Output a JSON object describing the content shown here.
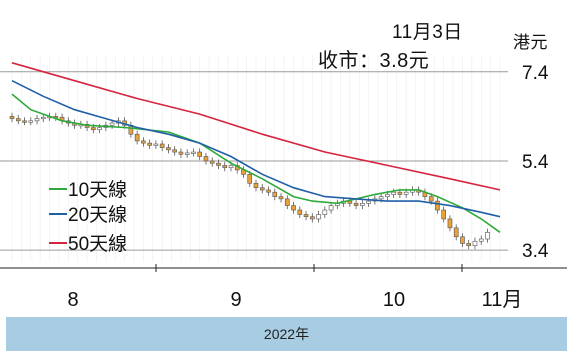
{
  "chart_data": {
    "type": "line",
    "annotation": {
      "date": "11月3日",
      "close": "收市：3.8元"
    },
    "y_unit": "港元",
    "ylim": [
      3.0,
      8.0
    ],
    "y_ticks": [
      3.4,
      5.4,
      7.4
    ],
    "y_tick_labels": [
      "3.4",
      "5.4",
      "7.4"
    ],
    "x_tick_labels": [
      "8",
      "9",
      "10",
      "11月"
    ],
    "x_title": "2022年",
    "legend": [
      "10天線",
      "20天線",
      "50天線"
    ],
    "grid": "horizontal at y ticks",
    "colors": {
      "ma10": "#2eaa3a",
      "ma20": "#1f5fa8",
      "ma50": "#d6233e",
      "candle_up": "#ffffff",
      "candle_down": "#e8a23a",
      "footer_bg": "#a8cde3"
    },
    "series": [
      {
        "name": "10天線",
        "x": [
          0,
          3,
          8,
          12,
          18,
          25,
          30,
          35,
          40,
          45,
          48,
          52,
          55,
          58,
          60,
          62,
          65,
          68,
          72,
          75,
          78
        ],
        "y": [
          6.9,
          6.55,
          6.3,
          6.2,
          6.15,
          6.05,
          5.8,
          5.35,
          5.0,
          4.6,
          4.5,
          4.45,
          4.55,
          4.65,
          4.7,
          4.75,
          4.75,
          4.6,
          4.35,
          4.1,
          3.8
        ]
      },
      {
        "name": "20天線",
        "x": [
          0,
          5,
          10,
          15,
          20,
          25,
          30,
          35,
          40,
          45,
          50,
          55,
          60,
          65,
          70,
          75,
          78
        ],
        "y": [
          7.2,
          6.85,
          6.55,
          6.35,
          6.15,
          6.0,
          5.8,
          5.5,
          5.1,
          4.8,
          4.6,
          4.55,
          4.5,
          4.5,
          4.4,
          4.25,
          4.15
        ]
      },
      {
        "name": "50天線",
        "x": [
          0,
          10,
          20,
          30,
          40,
          50,
          60,
          70,
          78
        ],
        "y": [
          7.6,
          7.2,
          6.8,
          6.45,
          6.0,
          5.6,
          5.3,
          5.0,
          4.75
        ]
      }
    ],
    "candles": {
      "x": [
        0,
        1,
        2,
        3,
        4,
        5,
        6,
        7,
        8,
        9,
        10,
        11,
        12,
        13,
        14,
        15,
        16,
        17,
        18,
        19,
        20,
        21,
        22,
        23,
        24,
        25,
        26,
        27,
        28,
        29,
        30,
        31,
        32,
        33,
        34,
        35,
        36,
        37,
        38,
        39,
        40,
        41,
        42,
        43,
        44,
        45,
        46,
        47,
        48,
        49,
        50,
        51,
        52,
        53,
        54,
        55,
        56,
        57,
        58,
        59,
        60,
        61,
        62,
        63,
        64,
        65,
        66,
        67,
        68,
        69,
        70,
        71,
        72,
        73,
        74,
        75,
        76
      ],
      "close": [
        6.35,
        6.3,
        6.28,
        6.3,
        6.35,
        6.38,
        6.4,
        6.38,
        6.3,
        6.25,
        6.2,
        6.22,
        6.15,
        6.1,
        6.15,
        6.2,
        6.25,
        6.3,
        6.2,
        6.0,
        5.85,
        5.8,
        5.75,
        5.78,
        5.7,
        5.65,
        5.6,
        5.55,
        5.58,
        5.6,
        5.5,
        5.4,
        5.35,
        5.3,
        5.25,
        5.3,
        5.2,
        5.1,
        4.9,
        4.8,
        4.75,
        4.7,
        4.6,
        4.55,
        4.4,
        4.3,
        4.2,
        4.15,
        4.1,
        4.2,
        4.3,
        4.4,
        4.45,
        4.5,
        4.45,
        4.4,
        4.45,
        4.5,
        4.55,
        4.6,
        4.65,
        4.7,
        4.65,
        4.7,
        4.75,
        4.7,
        4.6,
        4.5,
        4.3,
        4.1,
        3.9,
        3.7,
        3.55,
        3.5,
        3.6,
        3.65,
        3.8
      ]
    }
  }
}
